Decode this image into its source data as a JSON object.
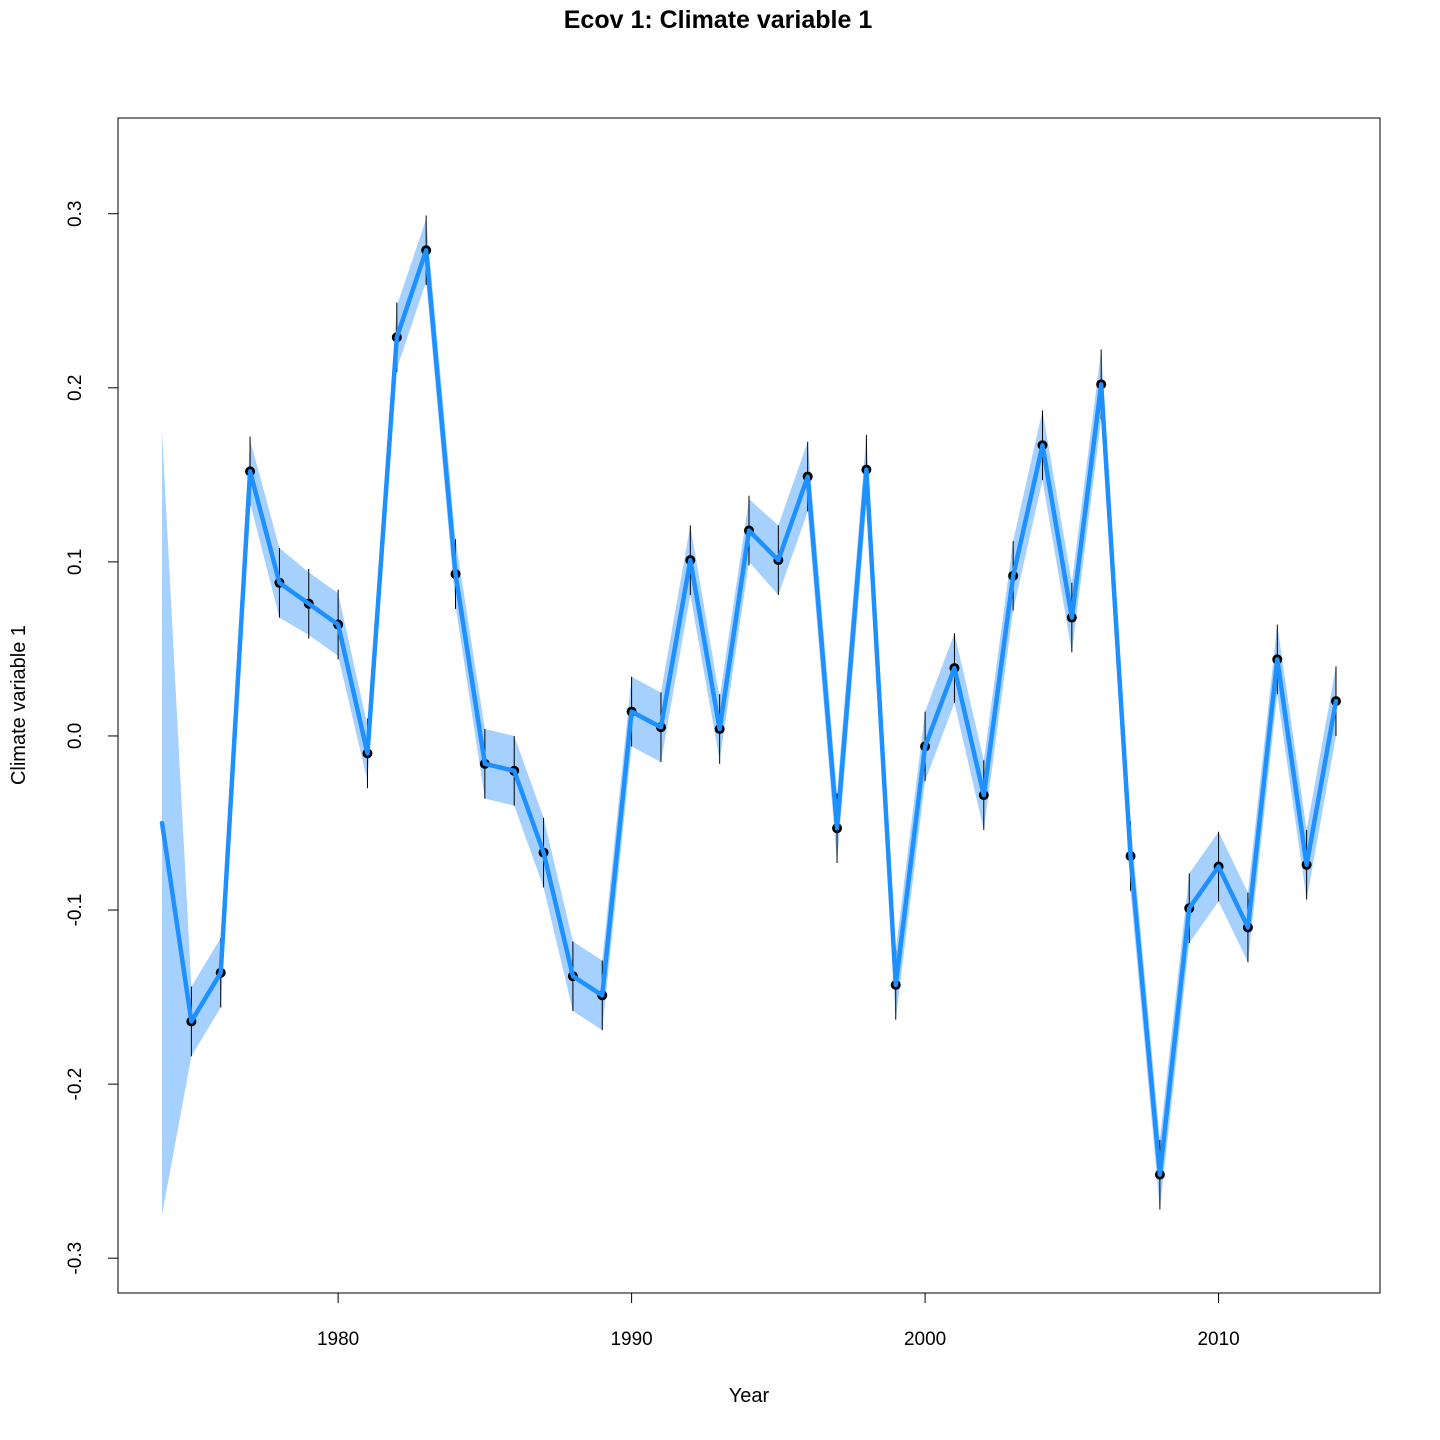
{
  "chart_data": {
    "type": "line",
    "title": "Ecov 1: Climate variable 1",
    "xlabel": "Year",
    "ylabel": "Climate variable 1",
    "xlim": [
      1972.5,
      2015.5
    ],
    "ylim": [
      -0.32,
      0.355
    ],
    "xticks": [
      1980,
      1990,
      2000,
      2010
    ],
    "yticks": [
      -0.3,
      -0.2,
      -0.1,
      0.0,
      0.1,
      0.2,
      0.3
    ],
    "grid": false,
    "legend": "none",
    "colors": {
      "line": "#1E90FF",
      "band": "#A6D1FF",
      "points": "#000000"
    },
    "series": [
      {
        "type": "line-with-band",
        "x": [
          1974,
          1975,
          1976,
          1977,
          1978,
          1979,
          1980,
          1981,
          1982,
          1983,
          1984,
          1985,
          1986,
          1987,
          1988,
          1989,
          1990,
          1991,
          1992,
          1993,
          1994,
          1995,
          1996,
          1997,
          1998,
          1999,
          2000,
          2001,
          2002,
          2003,
          2004,
          2005,
          2006,
          2007,
          2008,
          2009,
          2010,
          2011,
          2012,
          2013,
          2014
        ],
        "y": [
          -0.05,
          -0.164,
          -0.136,
          0.152,
          0.088,
          0.076,
          0.064,
          -0.01,
          0.229,
          0.279,
          0.093,
          -0.016,
          -0.02,
          -0.067,
          -0.138,
          -0.149,
          0.014,
          0.005,
          0.101,
          0.004,
          0.118,
          0.101,
          0.149,
          -0.053,
          0.153,
          -0.143,
          -0.006,
          0.039,
          -0.034,
          0.092,
          0.167,
          0.068,
          0.202,
          -0.069,
          -0.252,
          -0.099,
          -0.075,
          -0.11,
          0.044,
          -0.074,
          0.02
        ],
        "lower": [
          -0.275,
          -0.184,
          -0.156,
          0.134,
          0.068,
          0.058,
          0.046,
          -0.026,
          0.211,
          0.261,
          0.075,
          -0.036,
          -0.04,
          -0.087,
          -0.158,
          -0.169,
          -0.006,
          -0.015,
          0.081,
          -0.014,
          0.1,
          0.081,
          0.129,
          -0.073,
          0.133,
          -0.163,
          -0.026,
          0.019,
          -0.054,
          0.072,
          0.147,
          0.048,
          0.182,
          -0.089,
          -0.272,
          -0.119,
          -0.095,
          -0.13,
          0.024,
          -0.094,
          0.0
        ],
        "upper": [
          0.175,
          -0.144,
          -0.116,
          0.17,
          0.108,
          0.094,
          0.082,
          0.006,
          0.247,
          0.297,
          0.113,
          0.004,
          0.0,
          -0.047,
          -0.118,
          -0.129,
          0.034,
          0.025,
          0.121,
          0.022,
          0.136,
          0.121,
          0.169,
          -0.033,
          0.173,
          -0.123,
          0.014,
          0.059,
          -0.014,
          0.112,
          0.187,
          0.088,
          0.222,
          -0.049,
          -0.232,
          -0.079,
          -0.055,
          -0.09,
          0.064,
          -0.054,
          0.04
        ]
      },
      {
        "type": "points-with-errorbars",
        "x": [
          1975,
          1976,
          1977,
          1978,
          1979,
          1980,
          1981,
          1982,
          1983,
          1984,
          1985,
          1986,
          1987,
          1988,
          1989,
          1990,
          1991,
          1992,
          1993,
          1994,
          1995,
          1996,
          1997,
          1998,
          1999,
          2000,
          2001,
          2002,
          2003,
          2004,
          2005,
          2006,
          2007,
          2008,
          2009,
          2010,
          2011,
          2012,
          2013,
          2014
        ],
        "y": [
          -0.164,
          -0.136,
          0.152,
          0.088,
          0.076,
          0.064,
          -0.01,
          0.229,
          0.279,
          0.093,
          -0.016,
          -0.02,
          -0.067,
          -0.138,
          -0.149,
          0.014,
          0.005,
          0.101,
          0.004,
          0.118,
          0.101,
          0.149,
          -0.053,
          0.153,
          -0.143,
          -0.006,
          0.039,
          -0.034,
          0.092,
          0.167,
          0.068,
          0.202,
          -0.069,
          -0.252,
          -0.099,
          -0.075,
          -0.11,
          0.044,
          -0.074,
          0.02
        ],
        "err_low": [
          -0.184,
          -0.156,
          0.132,
          0.068,
          0.056,
          0.044,
          -0.03,
          0.209,
          0.259,
          0.073,
          -0.036,
          -0.04,
          -0.087,
          -0.158,
          -0.169,
          -0.006,
          -0.015,
          0.081,
          -0.016,
          0.098,
          0.081,
          0.129,
          -0.073,
          0.133,
          -0.163,
          -0.026,
          0.019,
          -0.054,
          0.072,
          0.147,
          0.048,
          0.182,
          -0.089,
          -0.272,
          -0.119,
          -0.095,
          -0.13,
          0.024,
          -0.094,
          0.0
        ],
        "err_high": [
          -0.144,
          -0.116,
          0.172,
          0.108,
          0.096,
          0.084,
          0.01,
          0.249,
          0.299,
          0.113,
          0.004,
          0.0,
          -0.047,
          -0.118,
          -0.129,
          0.034,
          0.025,
          0.121,
          0.024,
          0.138,
          0.121,
          0.169,
          -0.033,
          0.173,
          -0.123,
          0.014,
          0.059,
          -0.014,
          0.112,
          0.187,
          0.088,
          0.222,
          -0.049,
          -0.232,
          -0.079,
          -0.055,
          -0.09,
          0.064,
          -0.054,
          0.04
        ]
      }
    ]
  }
}
